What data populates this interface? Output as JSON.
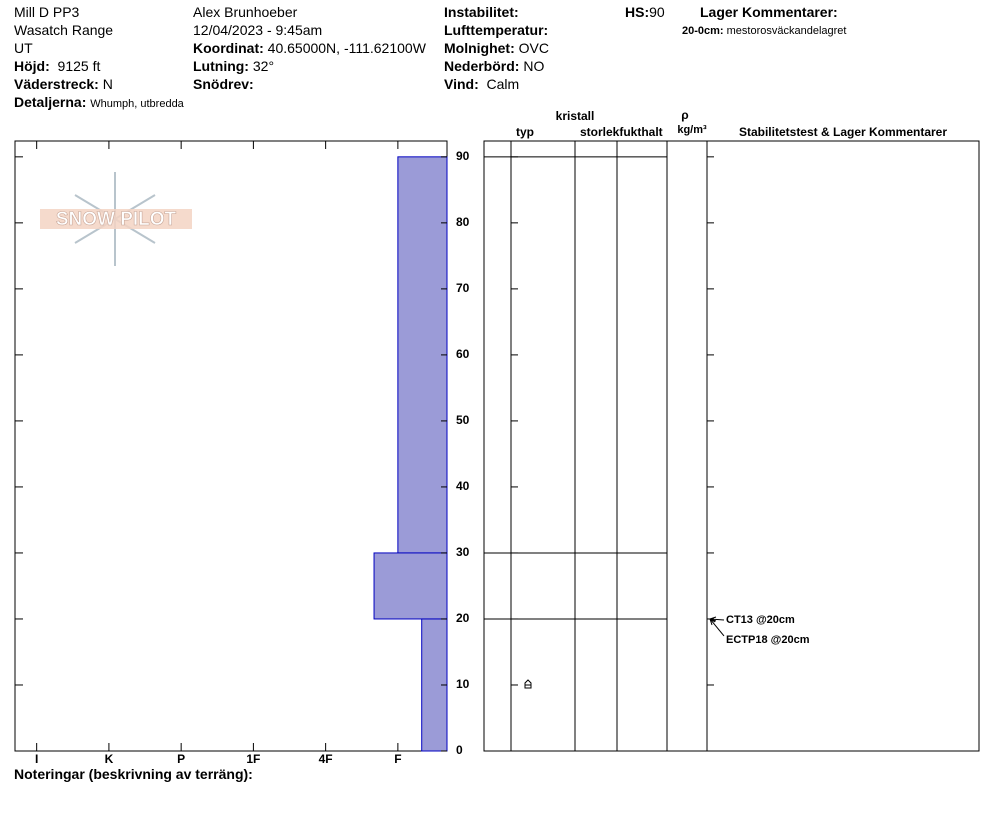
{
  "header": {
    "site": "Mill D PP3",
    "range": "Wasatch Range",
    "state": "UT",
    "elevation": {
      "label": "Höjd:",
      "value": "9125 ft"
    },
    "aspect": {
      "label": "Väderstreck:",
      "value": "N"
    },
    "details": {
      "label": "Detaljerna:",
      "value": "Whumph, utbredda"
    },
    "observer": "Alex Brunhoeber",
    "datetime": "12/04/2023 - 9:45am",
    "coordinates": {
      "label": "Koordinat:",
      "value": "40.65000N, -111.62100W"
    },
    "slope": {
      "label": "Lutning:",
      "value": "32°"
    },
    "wind_loading": {
      "label": "Snödrev:"
    },
    "instability": {
      "label": "Instabilitet:"
    },
    "air_temp": {
      "label": "Lufttemperatur:"
    },
    "sky": {
      "label": "Molnighet:",
      "value": "OVC"
    },
    "precip": {
      "label": "Nederbörd:",
      "value": "NO"
    },
    "wind": {
      "label": "Vind:",
      "value": "Calm"
    },
    "hs": {
      "label": "HS:",
      "value": 90
    },
    "layer_comments": {
      "label": "Lager Kommentarer:",
      "entries": [
        {
          "range": "20-0cm:",
          "text": "mestorosväckandelagret"
        }
      ]
    },
    "logo": "SNOW PILOT"
  },
  "footer": {
    "notes_label": "Noteringar (beskrivning av terräng):"
  },
  "chart_data": {
    "type": "snow-profile",
    "xlim": [
      6.3,
      0.32
    ],
    "xticks": [
      {
        "value": 6,
        "label": "I"
      },
      {
        "value": 5,
        "label": "K"
      },
      {
        "value": 4,
        "label": "P"
      },
      {
        "value": 3,
        "label": "1F"
      },
      {
        "value": 2,
        "label": "4F"
      },
      {
        "value": 1,
        "label": "F"
      }
    ],
    "ylim": [
      0,
      92.4
    ],
    "yticks": [
      0,
      10,
      20,
      30,
      40,
      50,
      60,
      70,
      80,
      90
    ],
    "color": "#9b9bd7",
    "edge_color": "#0000c0",
    "layers": [
      {
        "top": 90,
        "bottom": 30,
        "hardness": 1
      },
      {
        "top": 30,
        "bottom": 20,
        "hardness": 1.33
      },
      {
        "top": 20,
        "bottom": 0,
        "hardness": 0.67
      }
    ],
    "table_headers": {
      "type": "typ",
      "crystal": "kristall",
      "size": "storlek",
      "moisture": "fukthalt",
      "rho": "ρ",
      "density_unit": "kg/m³",
      "comments": "Stabilitetstest & Lager Kommentarer"
    },
    "grains": [
      {
        "depth": 10
      }
    ],
    "tests": [
      {
        "label": "CT13 @20cm",
        "depth": 20
      },
      {
        "label": "ECTP18 @20cm",
        "depth": 20
      }
    ]
  }
}
